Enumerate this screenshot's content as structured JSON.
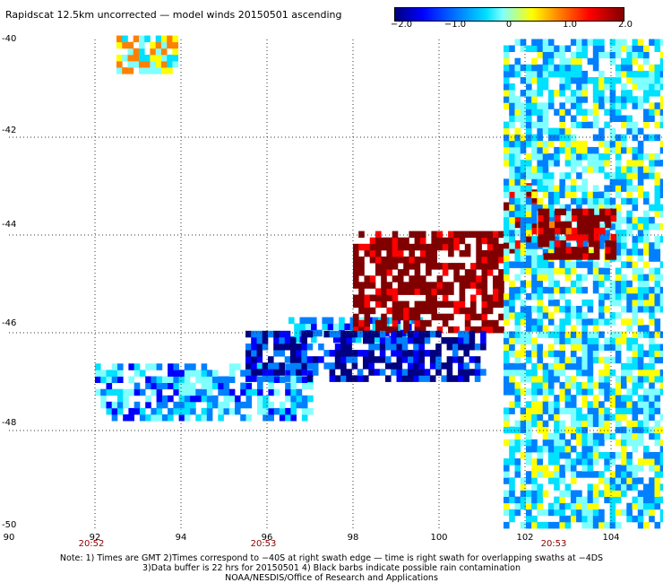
{
  "title": "Rapidscat 12.5km uncorrected — model winds 20150501 ascending",
  "colorbar": {
    "ticks": [
      "−2.0",
      "−1.0",
      "0",
      "1.0",
      "2.0"
    ],
    "colors": [
      "#000080",
      "#0000ff",
      "#0080ff",
      "#00e0ff",
      "#80ffff",
      "#ffff00",
      "#ff8000",
      "#ff0000",
      "#800000"
    ]
  },
  "axes": {
    "lat_labels": [
      "-40",
      "-42",
      "-44",
      "-46",
      "-48",
      "-50"
    ],
    "lon_labels": [
      "90",
      "92",
      "94",
      "96",
      "98",
      "100",
      "102",
      "104"
    ],
    "time_labels": [
      {
        "text": "20:52",
        "lon": 92
      },
      {
        "text": "20:53",
        "lon": 96
      },
      {
        "text": "20:53",
        "lon": 103
      }
    ],
    "lat_range": [
      -40,
      -50
    ],
    "lon_range": [
      90,
      105.2
    ]
  },
  "notes": [
    "Note: 1) Times are GMT 2)Times correspond to −40S at right swath edge — time is right swath for overlapping swaths at −4DS",
    "3)Data buffer is 22 hrs for 20150501 4) Black barbs indicate possible rain contamination",
    "NOAA/NESDIS/Office of Research and Applications"
  ],
  "chart_data": {
    "type": "heatmap",
    "title": "Rapidscat 12.5km uncorrected — model winds 20150501 ascending",
    "xlabel": "",
    "ylabel": "",
    "xlim": [
      90,
      105.2
    ],
    "ylim": [
      -50,
      -40
    ],
    "value_range": [
      -2.0,
      2.0
    ],
    "regions": [
      {
        "lon": [
          92.5,
          93.8
        ],
        "lat": [
          -40.0,
          -40.7
        ],
        "mean": 0.3
      },
      {
        "lon": [
          96.5,
          99.5
        ],
        "lat": [
          -45.8,
          -46.2
        ],
        "mean": -0.8
      },
      {
        "lon": [
          98.0,
          101.5
        ],
        "lat": [
          -44.0,
          -46.0
        ],
        "mean": 2.0
      },
      {
        "lon": [
          101.5,
          102.2
        ],
        "lat": [
          -43.0,
          -44.5
        ],
        "mean": 1.8
      },
      {
        "lon": [
          92.0,
          97.0
        ],
        "lat": [
          -46.7,
          -47.8
        ],
        "mean": -0.6
      },
      {
        "lon": [
          101.5,
          105.2
        ],
        "lat": [
          -40.0,
          -50.0
        ],
        "mean": -0.3
      },
      {
        "lon": [
          102.3,
          104.0
        ],
        "lat": [
          -43.5,
          -44.5
        ],
        "mean": 1.9
      },
      {
        "lon": [
          95.5,
          101.0
        ],
        "lat": [
          -46.0,
          -47.0
        ],
        "mean": -1.5
      }
    ]
  }
}
